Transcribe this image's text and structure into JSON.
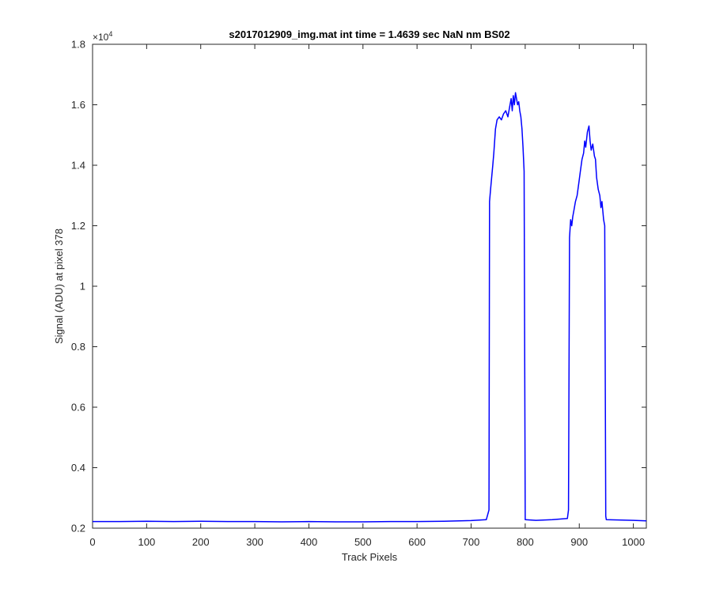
{
  "chart_data": {
    "type": "line",
    "title": "s2017012909_img.mat int time = 1.4639 sec  NaN nm BS02",
    "xlabel": "Track Pixels",
    "ylabel": "Signal (ADU) at pixel 378",
    "xlim": [
      0,
      1024
    ],
    "ylim": [
      0.2,
      1.8
    ],
    "y_multiplier": "×10",
    "y_exponent": "4",
    "xticks": [
      0,
      100,
      200,
      300,
      400,
      500,
      600,
      700,
      800,
      900,
      1000
    ],
    "xtick_labels": [
      "0",
      "100",
      "200",
      "300",
      "400",
      "500",
      "600",
      "700",
      "800",
      "900",
      "1000"
    ],
    "yticks": [
      0.2,
      0.4,
      0.6,
      0.8,
      1.0,
      1.2,
      1.4,
      1.6,
      1.8
    ],
    "ytick_labels": [
      "0.2",
      "0.4",
      "0.6",
      "0.8",
      "1",
      "1.2",
      "1.4",
      "1.6",
      "1.8"
    ],
    "grid": false,
    "series": [
      {
        "color": "#0000ff",
        "x": [
          0,
          50,
          100,
          150,
          200,
          250,
          300,
          350,
          400,
          450,
          500,
          550,
          600,
          650,
          700,
          728,
          733,
          734,
          736,
          738,
          740,
          742,
          745,
          748,
          752,
          756,
          760,
          764,
          768,
          772,
          774,
          776,
          778,
          780,
          782,
          784,
          786,
          788,
          790,
          792,
          794,
          796,
          798,
          800,
          820,
          850,
          878,
          880,
          882,
          884,
          886,
          888,
          890,
          893,
          896,
          899,
          902,
          905,
          908,
          910,
          912,
          915,
          918,
          920,
          922,
          925,
          928,
          930,
          932,
          935,
          938,
          940,
          942,
          945,
          947,
          949,
          950,
          1000,
          1024
        ],
        "y": [
          0.222,
          0.222,
          0.223,
          0.222,
          0.223,
          0.222,
          0.222,
          0.221,
          0.222,
          0.221,
          0.221,
          0.222,
          0.222,
          0.223,
          0.225,
          0.228,
          0.26,
          1.28,
          1.32,
          1.36,
          1.4,
          1.44,
          1.52,
          1.55,
          1.56,
          1.55,
          1.57,
          1.58,
          1.56,
          1.6,
          1.62,
          1.58,
          1.63,
          1.6,
          1.64,
          1.62,
          1.6,
          1.61,
          1.58,
          1.56,
          1.52,
          1.46,
          1.38,
          0.228,
          0.226,
          0.228,
          0.232,
          0.26,
          1.16,
          1.22,
          1.2,
          1.23,
          1.25,
          1.28,
          1.3,
          1.34,
          1.38,
          1.42,
          1.44,
          1.48,
          1.46,
          1.51,
          1.53,
          1.48,
          1.45,
          1.47,
          1.43,
          1.42,
          1.36,
          1.32,
          1.3,
          1.26,
          1.28,
          1.22,
          1.2,
          0.24,
          0.228,
          0.226,
          0.224
        ]
      }
    ]
  }
}
